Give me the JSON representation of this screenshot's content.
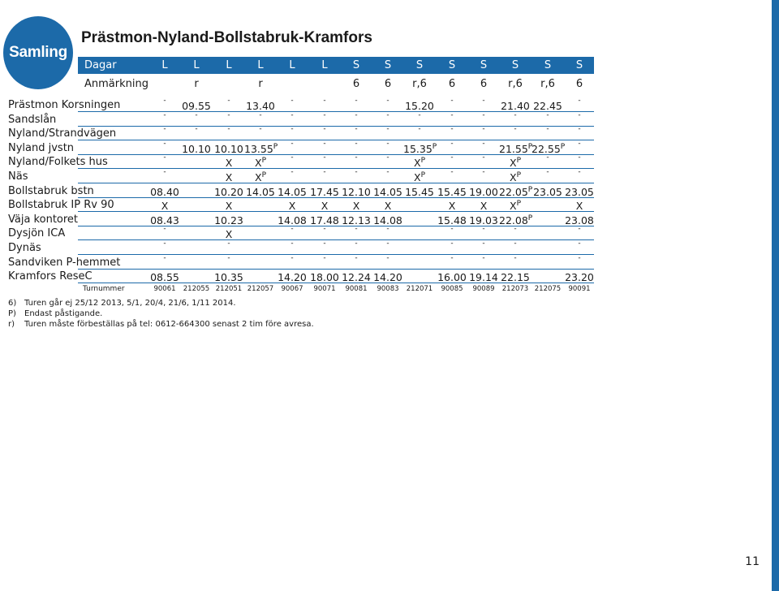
{
  "badge": "Samling",
  "title": "Prästmon-Nyland-Bollstabruk-Kramfors",
  "colors": {
    "accent": "#1c6aa9",
    "text": "#1a1a1a"
  },
  "dagar_label": "Dagar",
  "anmarkning_label": "Anmärkning",
  "days": [
    "L",
    "L",
    "L",
    "L",
    "L",
    "L",
    "S",
    "S",
    "S",
    "S",
    "S",
    "S",
    "S",
    "S"
  ],
  "remarks": [
    "",
    "r",
    "",
    "r",
    "",
    "",
    "6",
    "6",
    "r,6",
    "6",
    "6",
    "r,6",
    "r,6",
    "6"
  ],
  "stops": [
    {
      "name": "Prästmon Korsningen",
      "cells": [
        "-",
        "09.55",
        "-",
        "13.40",
        "-",
        "-",
        "-",
        "-",
        "15.20",
        "-",
        "-",
        "21.40",
        "22.45",
        "-"
      ]
    },
    {
      "name": "Sandslån",
      "cells": [
        "-",
        "-",
        "-",
        "-",
        "-",
        "-",
        "-",
        "-",
        "-",
        "-",
        "-",
        "-",
        "-",
        "-"
      ]
    },
    {
      "name": "Nyland/Strandvägen",
      "cells": [
        "-",
        "-",
        "-",
        "-",
        "-",
        "-",
        "-",
        "-",
        "-",
        "-",
        "-",
        "-",
        "-",
        "-"
      ]
    },
    {
      "name": "Nyland jvstn",
      "cells": [
        "-",
        "10.10",
        "10.10",
        "13.55P",
        "-",
        "-",
        "-",
        "-",
        "15.35P",
        "-",
        "-",
        "21.55P",
        "22.55P",
        "-"
      ]
    },
    {
      "name": "Nyland/Folkets hus",
      "cells": [
        "-",
        "",
        "X",
        "XP",
        "-",
        "-",
        "-",
        "-",
        "XP",
        "-",
        "-",
        "XP",
        "-",
        "-"
      ]
    },
    {
      "name": "Näs",
      "cells": [
        "-",
        "",
        "X",
        "XP",
        "-",
        "-",
        "-",
        "-",
        "XP",
        "-",
        "-",
        "XP",
        "-",
        "-"
      ]
    },
    {
      "name": "Bollstabruk bstn",
      "cells": [
        "08.40",
        "",
        "10.20",
        "14.05",
        "14.05",
        "17.45",
        "12.10",
        "14.05",
        "15.45",
        "15.45",
        "19.00",
        "22.05P",
        "23.05",
        "23.05"
      ]
    },
    {
      "name": "Bollstabruk IP Rv 90",
      "cells": [
        "X",
        "",
        "X",
        "",
        "X",
        "X",
        "X",
        "X",
        "",
        "X",
        "X",
        "XP",
        "",
        "X"
      ]
    },
    {
      "name": "Väja kontoret",
      "cells": [
        "08.43",
        "",
        "10.23",
        "",
        "14.08",
        "17.48",
        "12.13",
        "14.08",
        "",
        "15.48",
        "19.03",
        "22.08P",
        "",
        "23.08"
      ]
    },
    {
      "name": "Dysjön ICA",
      "cells": [
        "-",
        "",
        "X",
        "",
        "-",
        "-",
        "-",
        "-",
        "",
        "-",
        "-",
        "-",
        "",
        "-"
      ]
    },
    {
      "name": "Dynäs",
      "cells": [
        "-",
        "",
        "-",
        "",
        "-",
        "-",
        "-",
        "-",
        "",
        "-",
        "-",
        "-",
        "",
        "-"
      ]
    },
    {
      "name": "Sandviken P-hemmet",
      "cells": [
        "-",
        "",
        "-",
        "",
        "-",
        "-",
        "-",
        "-",
        "",
        "-",
        "-",
        "-",
        "",
        "-"
      ]
    },
    {
      "name": "Kramfors ReseC",
      "cells": [
        "08.55",
        "",
        "10.35",
        "",
        "14.20",
        "18.00",
        "12.24",
        "14.20",
        "",
        "16.00",
        "19.14",
        "22.15",
        "",
        "23.20"
      ]
    }
  ],
  "trip_label": "Turnummer",
  "trips": [
    "90061",
    "212055",
    "212051",
    "212057",
    "90067",
    "90071",
    "90081",
    "90083",
    "212071",
    "90085",
    "90089",
    "212073",
    "212075",
    "90091"
  ],
  "notes": [
    {
      "key": "6)",
      "text": "Turen går ej 25/12 2013, 5/1, 20/4, 21/6, 1/11 2014."
    },
    {
      "key": "P)",
      "text": "Endast påstigande."
    },
    {
      "key": "r)",
      "text": "Turen måste förbeställas på tel: 0612-664300 senast 2 tim före avresa."
    }
  ],
  "page_number": "11"
}
